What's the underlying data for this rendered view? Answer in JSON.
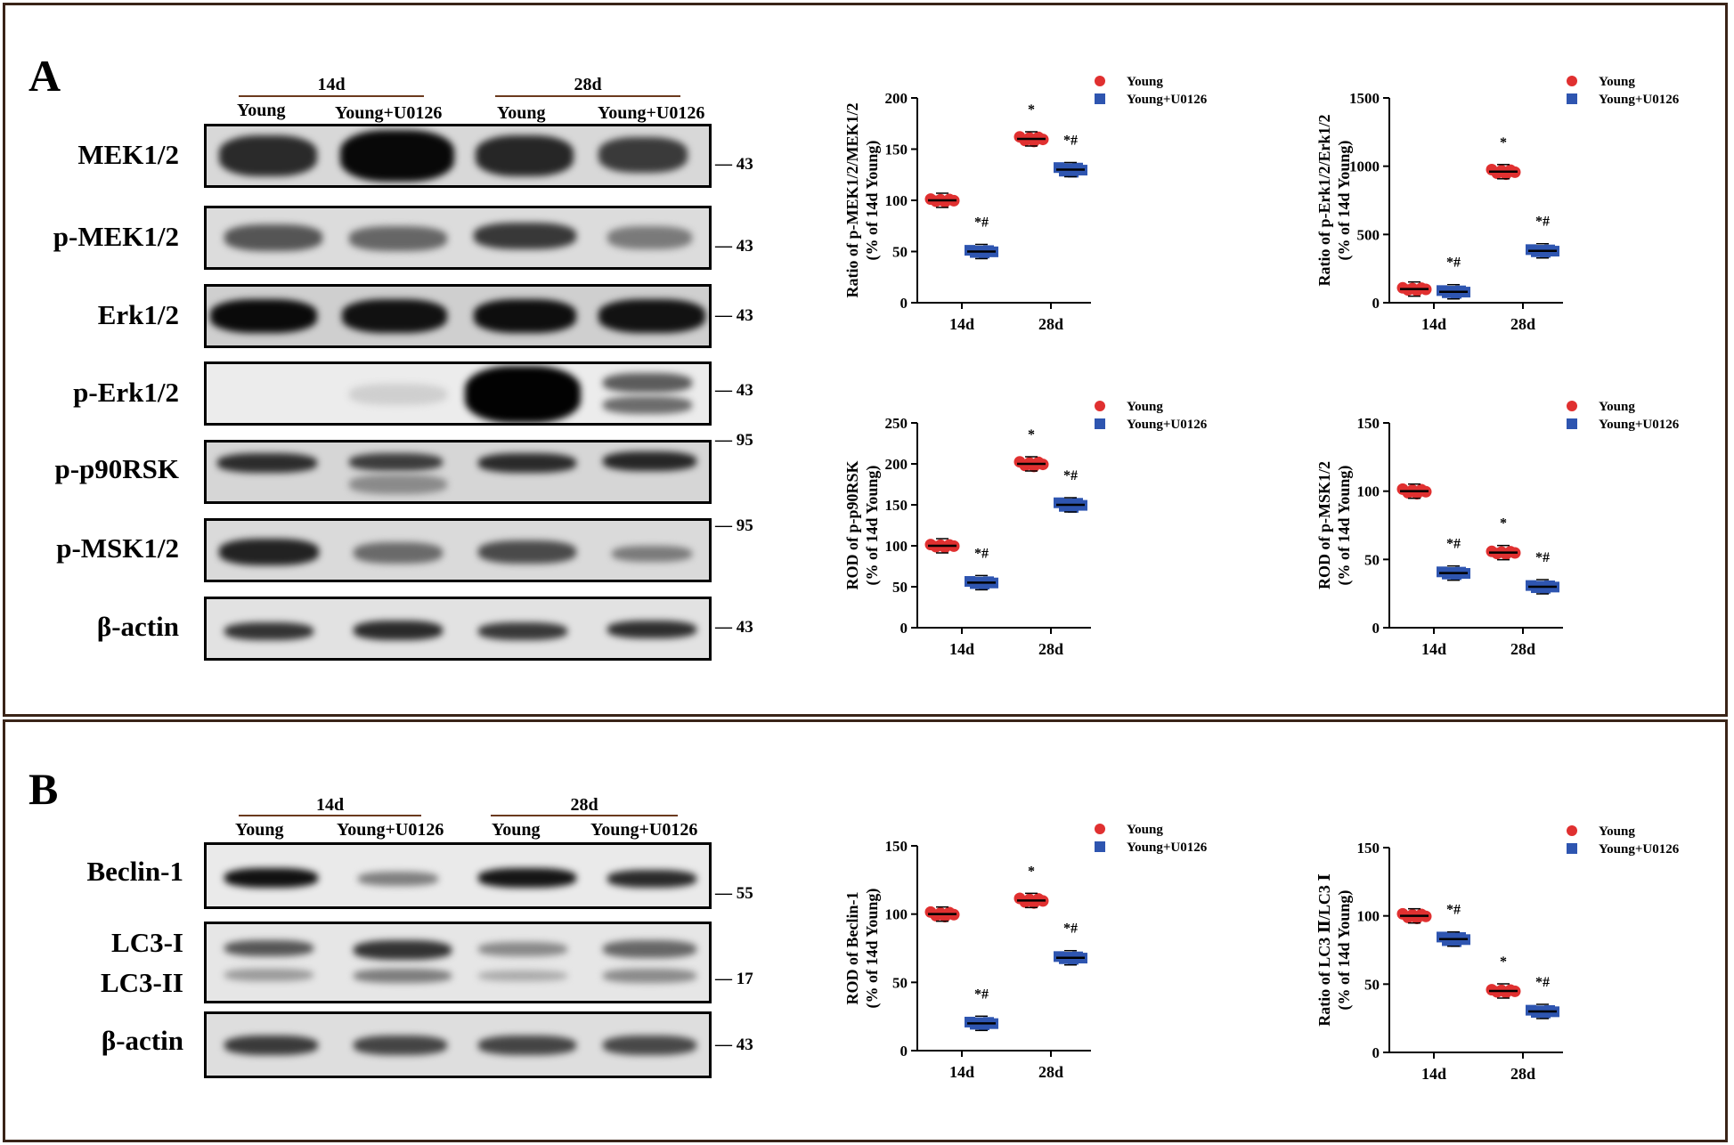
{
  "colors": {
    "young": "#e03030",
    "young_u0126": "#2e55b0",
    "frame": "#3a2418"
  },
  "panelA": {
    "letter": "A",
    "groups": [
      "14d",
      "28d"
    ],
    "lanes": [
      "Young",
      "Young+U0126",
      "Young",
      "Young+U0126"
    ],
    "blots": [
      {
        "label": "MEK1/2",
        "mw": "43"
      },
      {
        "label": "p-MEK1/2",
        "mw": "43"
      },
      {
        "label": "Erk1/2",
        "mw": "43"
      },
      {
        "label": "p-Erk1/2",
        "mw": "43"
      },
      {
        "label": "p-p90RSK",
        "mw": "95"
      },
      {
        "label": "p-MSK1/2",
        "mw": "95"
      },
      {
        "label": "β-actin",
        "mw": "43"
      }
    ]
  },
  "panelB": {
    "letter": "B",
    "groups": [
      "14d",
      "28d"
    ],
    "lanes": [
      "Young",
      "Young+U0126",
      "Young",
      "Young+U0126"
    ],
    "blots": [
      {
        "label": "Beclin-1",
        "mw": "55"
      },
      {
        "label": "LC3-I",
        "label2": "LC3-II",
        "mw": "17"
      },
      {
        "label": "β-actin",
        "mw": "43"
      }
    ]
  },
  "chart_data": [
    {
      "type": "scatter",
      "ylabel1": "Ratio of p-MEK1/2/MEK1/2",
      "ylabel2": "(% of 14d Young)",
      "categories": [
        "14d",
        "28d"
      ],
      "ylim": [
        0,
        200
      ],
      "yticks": [
        0,
        50,
        100,
        150,
        200
      ],
      "series": [
        {
          "name": "Young",
          "means": [
            100,
            160
          ],
          "annotations": [
            "",
            "*"
          ]
        },
        {
          "name": "Young+U0126",
          "means": [
            50,
            130
          ],
          "annotations": [
            "*#",
            "*#"
          ]
        }
      ]
    },
    {
      "type": "scatter",
      "ylabel1": "Ratio of p-Erk1/2/Erk1/2",
      "ylabel2": "(% of 14d Young)",
      "categories": [
        "14d",
        "28d"
      ],
      "ylim": [
        0,
        1500
      ],
      "yticks": [
        0,
        500,
        1000,
        1500
      ],
      "series": [
        {
          "name": "Young",
          "means": [
            100,
            960
          ],
          "annotations": [
            "",
            "*"
          ]
        },
        {
          "name": "Young+U0126",
          "means": [
            80,
            380
          ],
          "annotations": [
            "*#",
            "*#"
          ]
        }
      ]
    },
    {
      "type": "scatter",
      "ylabel1": "ROD of p-p90RSK",
      "ylabel2": "(% of 14d Young)",
      "categories": [
        "14d",
        "28d"
      ],
      "ylim": [
        0,
        250
      ],
      "yticks": [
        0,
        50,
        100,
        150,
        200,
        250
      ],
      "series": [
        {
          "name": "Young",
          "means": [
            100,
            200
          ],
          "annotations": [
            "",
            "*"
          ]
        },
        {
          "name": "Young+U0126",
          "means": [
            55,
            150
          ],
          "annotations": [
            "*#",
            "*#"
          ]
        }
      ]
    },
    {
      "type": "scatter",
      "ylabel1": "ROD of p-MSK1/2",
      "ylabel2": "(% of 14d Young)",
      "categories": [
        "14d",
        "28d"
      ],
      "ylim": [
        0,
        150
      ],
      "yticks": [
        0,
        50,
        100,
        150
      ],
      "series": [
        {
          "name": "Young",
          "means": [
            100,
            55
          ],
          "annotations": [
            "",
            "*"
          ]
        },
        {
          "name": "Young+U0126",
          "means": [
            40,
            30
          ],
          "annotations": [
            "*#",
            "*#"
          ]
        }
      ]
    },
    {
      "type": "scatter",
      "ylabel1": "ROD of Beclin-1",
      "ylabel2": "(% of 14d Young)",
      "categories": [
        "14d",
        "28d"
      ],
      "ylim": [
        0,
        150
      ],
      "yticks": [
        0,
        50,
        100,
        150
      ],
      "series": [
        {
          "name": "Young",
          "means": [
            100,
            110
          ],
          "annotations": [
            "",
            "*"
          ]
        },
        {
          "name": "Young+U0126",
          "means": [
            20,
            68
          ],
          "annotations": [
            "*#",
            "*#"
          ]
        }
      ]
    },
    {
      "type": "scatter",
      "ylabel1": "Ratio of LC3 Ⅱ/LC3 Ⅰ",
      "ylabel2": "(% of 14d Young)",
      "categories": [
        "14d",
        "28d"
      ],
      "ylim": [
        0,
        150
      ],
      "yticks": [
        0,
        50,
        100,
        150
      ],
      "series": [
        {
          "name": "Young",
          "means": [
            100,
            45
          ],
          "annotations": [
            "",
            "*"
          ]
        },
        {
          "name": "Young+U0126",
          "means": [
            83,
            30
          ],
          "annotations": [
            "*#",
            "*#"
          ]
        }
      ]
    }
  ]
}
